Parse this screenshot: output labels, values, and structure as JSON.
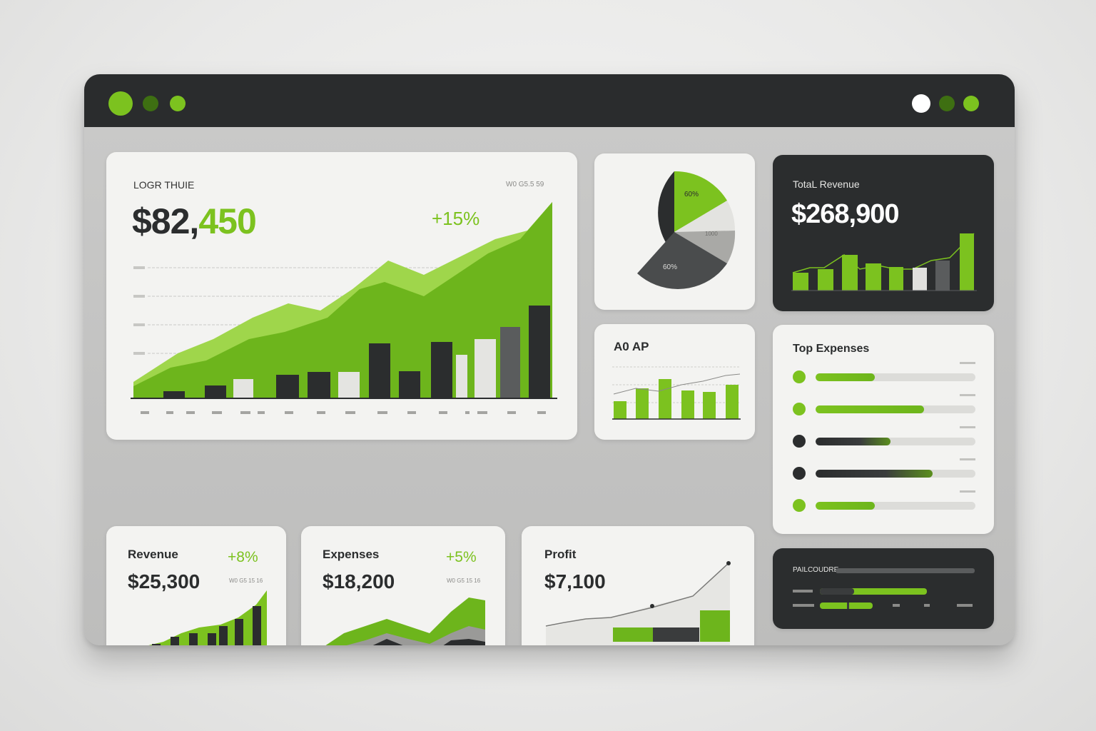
{
  "colors": {
    "accent": "#7cc21f",
    "accent_dark": "#4f8a14",
    "dark": "#2b2d2e",
    "gray": "#d9d9d6"
  },
  "main_card": {
    "title": "LOGR THUIE",
    "value_prefix": "$82,",
    "value_suffix": "450",
    "change": "+15%",
    "corner": "W0 G5.5 59"
  },
  "pie_card": {
    "slice_green": "60%",
    "slice_dark": "60%",
    "slice_gray": "1000"
  },
  "total_revenue": {
    "title": "TotaL Revenue",
    "value": "$268,900"
  },
  "small_chart_card": {
    "title": "A0 AP"
  },
  "top_expenses": {
    "title": "Top Expenses",
    "items": [
      {
        "color": "#7cc21f",
        "fill": 0.37
      },
      {
        "color": "#7cc21f",
        "fill": 0.68
      },
      {
        "color": "#2b2d2e",
        "fill": 0.47
      },
      {
        "color": "#2b2d2e",
        "fill": 0.73
      },
      {
        "color": "#7cc21f",
        "fill": 0.37
      }
    ]
  },
  "revenue": {
    "title": "Revenue",
    "value": "$25,300",
    "change": "+8%",
    "corner": "W0 G5 15 16"
  },
  "expenses": {
    "title": "Expenses",
    "value": "$18,200",
    "change": "+5%",
    "corner": "W0 G5 15 16"
  },
  "profit": {
    "title": "Profit",
    "value": "$7,100"
  },
  "bottom_dark": {
    "title": "PAILCOUDRE"
  }
}
